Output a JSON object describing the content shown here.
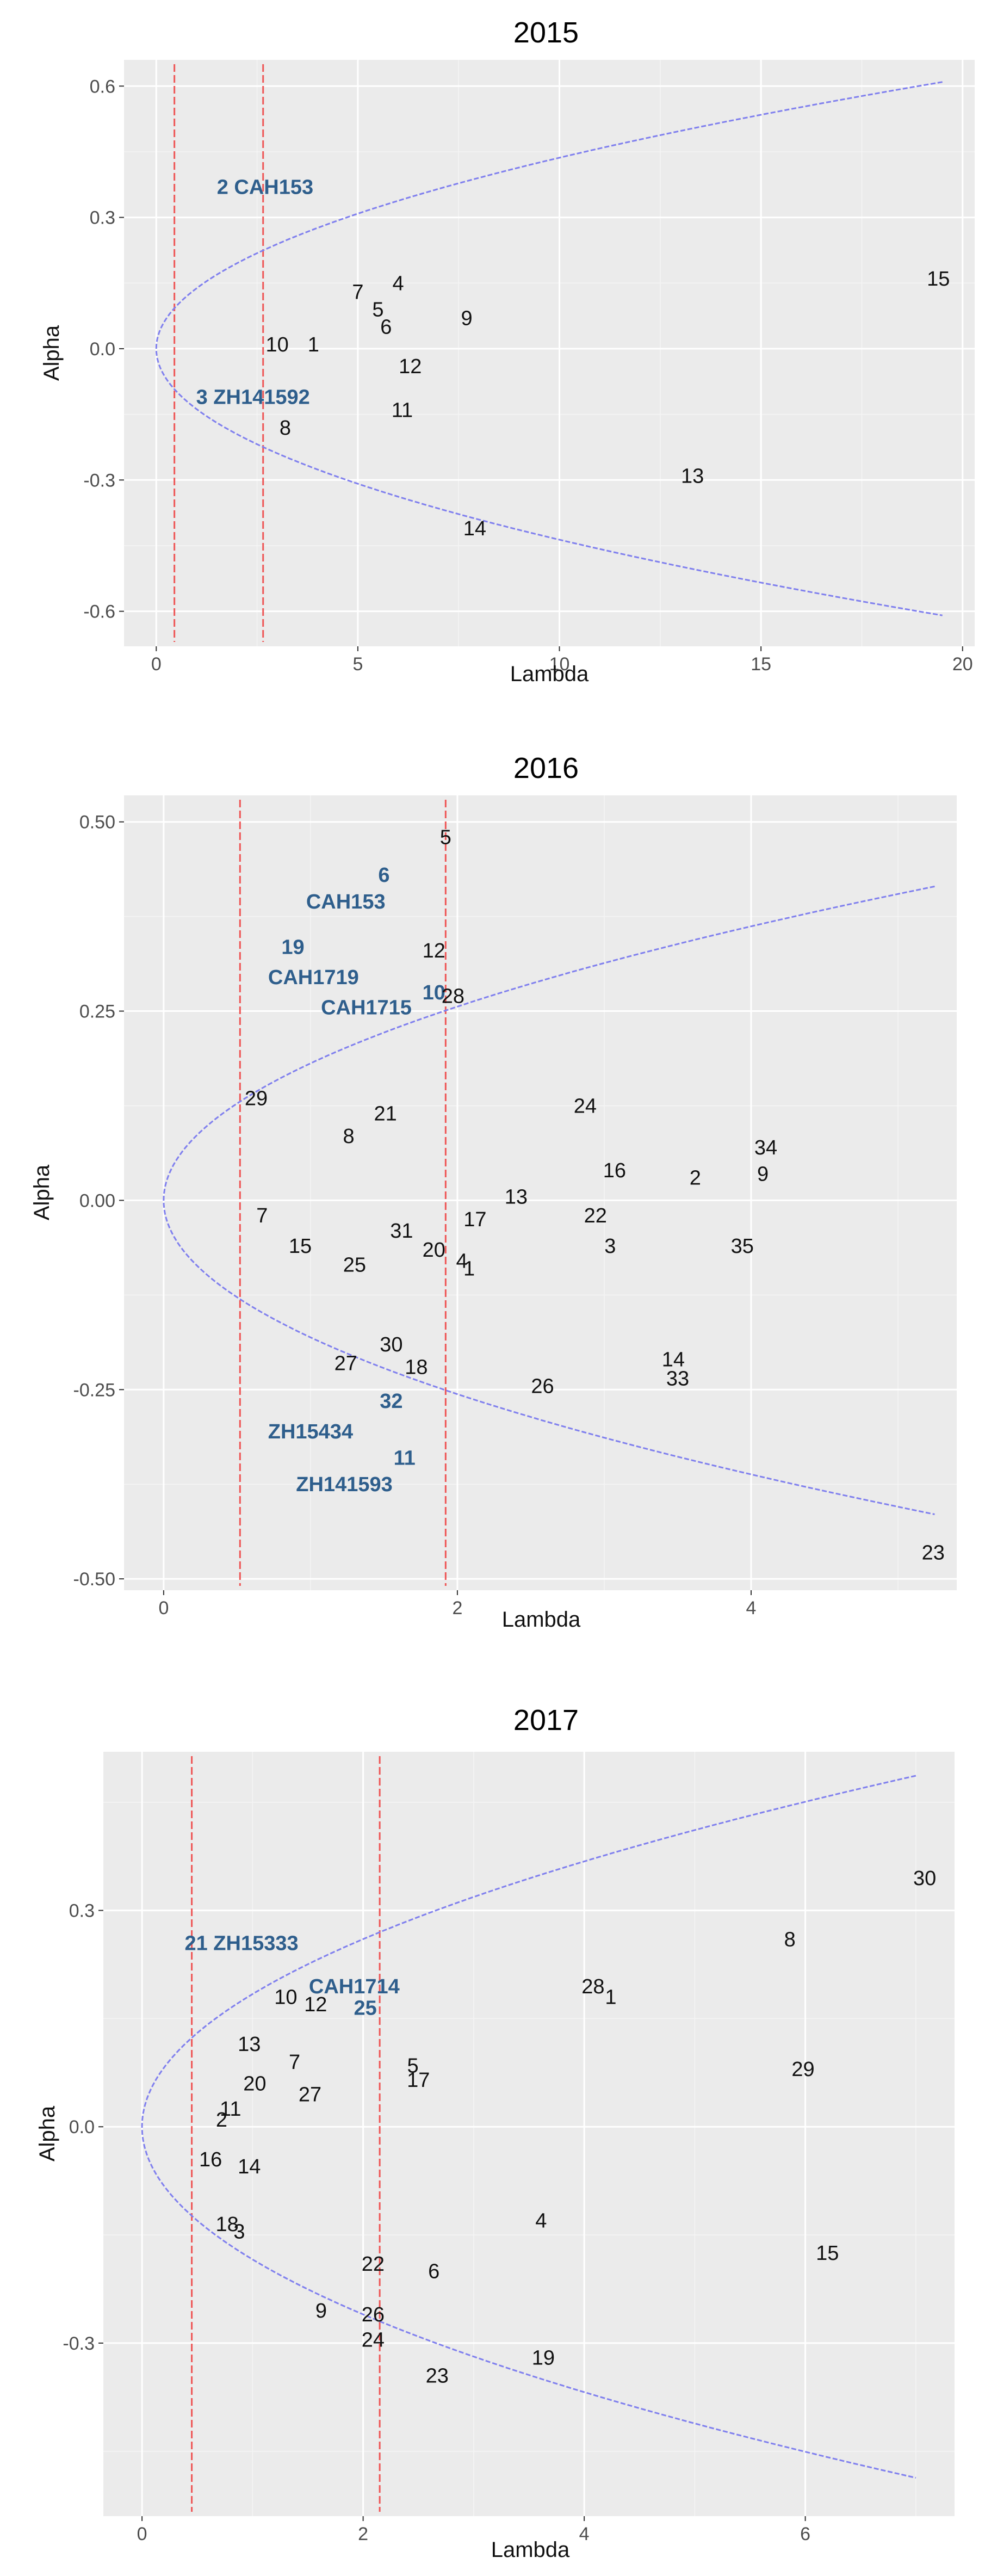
{
  "chart_data": [
    {
      "type": "scatter",
      "title": "2015",
      "xlabel": "Lambda",
      "ylabel": "Alpha",
      "xlim": [
        -0.8,
        20.3
      ],
      "ylim": [
        -0.68,
        0.66
      ],
      "xticks": [
        {
          "v": 0,
          "label": "0"
        },
        {
          "v": 5,
          "label": "5"
        },
        {
          "v": 10,
          "label": "10"
        },
        {
          "v": 15,
          "label": "15"
        },
        {
          "v": 20,
          "label": "20"
        }
      ],
      "yticks": [
        {
          "v": 0.6,
          "label": "0.6"
        },
        {
          "v": 0.3,
          "label": "0.3"
        },
        {
          "v": 0.0,
          "label": "0.0"
        },
        {
          "v": -0.3,
          "label": "-0.3"
        },
        {
          "v": -0.6,
          "label": "-0.6"
        }
      ],
      "vlines": [
        0.45,
        2.65
      ],
      "boundary": {
        "k": 0.138,
        "lambda_max": 19.5
      },
      "points": [
        {
          "label": "2 CAH153",
          "x": 2.7,
          "y": 0.37,
          "highlight": true
        },
        {
          "label": "3 ZH141592",
          "x": 2.4,
          "y": -0.11,
          "highlight": true
        },
        {
          "label": "7",
          "x": 5.0,
          "y": 0.13
        },
        {
          "label": "4",
          "x": 6.0,
          "y": 0.15
        },
        {
          "label": "5",
          "x": 5.5,
          "y": 0.09
        },
        {
          "label": "6",
          "x": 5.7,
          "y": 0.05
        },
        {
          "label": "9",
          "x": 7.7,
          "y": 0.07
        },
        {
          "label": "10",
          "x": 3.0,
          "y": 0.01
        },
        {
          "label": "1",
          "x": 3.9,
          "y": 0.01
        },
        {
          "label": "12",
          "x": 6.3,
          "y": -0.04
        },
        {
          "label": "11",
          "x": 6.1,
          "y": -0.14
        },
        {
          "label": "8",
          "x": 3.2,
          "y": -0.18
        },
        {
          "label": "13",
          "x": 13.3,
          "y": -0.29
        },
        {
          "label": "14",
          "x": 7.9,
          "y": -0.41
        },
        {
          "label": "15",
          "x": 19.4,
          "y": 0.16
        }
      ]
    },
    {
      "type": "scatter",
      "title": "2016",
      "xlabel": "Lambda",
      "ylabel": "Alpha",
      "xlim": [
        -0.27,
        5.4
      ],
      "ylim": [
        -0.515,
        0.535
      ],
      "xticks": [
        {
          "v": 0,
          "label": "0"
        },
        {
          "v": 2,
          "label": "2"
        },
        {
          "v": 4,
          "label": "4"
        }
      ],
      "yticks": [
        {
          "v": 0.5,
          "label": "0.50"
        },
        {
          "v": 0.25,
          "label": "0.25"
        },
        {
          "v": 0.0,
          "label": "0.00"
        },
        {
          "v": -0.25,
          "label": "-0.25"
        },
        {
          "v": -0.5,
          "label": "-0.50"
        }
      ],
      "vlines": [
        0.52,
        1.92
      ],
      "boundary": {
        "k": 0.181,
        "lambda_max": 5.25
      },
      "points": [
        {
          "label": "5",
          "x": 1.92,
          "y": 0.48
        },
        {
          "label": "6",
          "x": 1.5,
          "y": 0.43,
          "highlight": true
        },
        {
          "label": "CAH153",
          "x": 1.24,
          "y": 0.395,
          "highlight": true
        },
        {
          "label": "19",
          "x": 0.88,
          "y": 0.335,
          "highlight": true
        },
        {
          "label": "CAH1719",
          "x": 1.02,
          "y": 0.295,
          "highlight": true
        },
        {
          "label": "CAH1715",
          "x": 1.38,
          "y": 0.255,
          "highlight": true
        },
        {
          "label": "10",
          "x": 1.84,
          "y": 0.275,
          "highlight": true
        },
        {
          "label": "12",
          "x": 1.84,
          "y": 0.33
        },
        {
          "label": "28",
          "x": 1.97,
          "y": 0.27
        },
        {
          "label": "29",
          "x": 0.63,
          "y": 0.135
        },
        {
          "label": "21",
          "x": 1.51,
          "y": 0.115
        },
        {
          "label": "8",
          "x": 1.26,
          "y": 0.085
        },
        {
          "label": "24",
          "x": 2.87,
          "y": 0.125
        },
        {
          "label": "34",
          "x": 4.1,
          "y": 0.07
        },
        {
          "label": "16",
          "x": 3.07,
          "y": 0.04
        },
        {
          "label": "2",
          "x": 3.62,
          "y": 0.03
        },
        {
          "label": "9",
          "x": 4.08,
          "y": 0.035
        },
        {
          "label": "13",
          "x": 2.4,
          "y": 0.005
        },
        {
          "label": "7",
          "x": 0.67,
          "y": -0.02
        },
        {
          "label": "17",
          "x": 2.12,
          "y": -0.025
        },
        {
          "label": "22",
          "x": 2.94,
          "y": -0.02
        },
        {
          "label": "31",
          "x": 1.62,
          "y": -0.04
        },
        {
          "label": "15",
          "x": 0.93,
          "y": -0.06
        },
        {
          "label": "20",
          "x": 1.84,
          "y": -0.065
        },
        {
          "label": "3",
          "x": 3.04,
          "y": -0.06
        },
        {
          "label": "35",
          "x": 3.94,
          "y": -0.06
        },
        {
          "label": "4",
          "x": 2.03,
          "y": -0.08
        },
        {
          "label": "1",
          "x": 2.08,
          "y": -0.09
        },
        {
          "label": "25",
          "x": 1.3,
          "y": -0.085
        },
        {
          "label": "30",
          "x": 1.55,
          "y": -0.19
        },
        {
          "label": "14",
          "x": 3.47,
          "y": -0.21
        },
        {
          "label": "27",
          "x": 1.24,
          "y": -0.215
        },
        {
          "label": "18",
          "x": 1.72,
          "y": -0.22
        },
        {
          "label": "33",
          "x": 3.5,
          "y": -0.235
        },
        {
          "label": "26",
          "x": 2.58,
          "y": -0.245
        },
        {
          "label": "32",
          "x": 1.55,
          "y": -0.265,
          "highlight": true
        },
        {
          "label": "ZH15434",
          "x": 1.0,
          "y": -0.305,
          "highlight": true
        },
        {
          "label": "11",
          "x": 1.64,
          "y": -0.34,
          "highlight": true
        },
        {
          "label": "ZH141593",
          "x": 1.23,
          "y": -0.375,
          "highlight": true
        },
        {
          "label": "23",
          "x": 5.24,
          "y": -0.465
        }
      ]
    },
    {
      "type": "scatter",
      "title": "2017",
      "xlabel": "Lambda",
      "ylabel": "Alpha",
      "xlim": [
        -0.35,
        7.35
      ],
      "ylim": [
        -0.54,
        0.52
      ],
      "xticks": [
        {
          "v": 0,
          "label": "0"
        },
        {
          "v": 2,
          "label": "2"
        },
        {
          "v": 4,
          "label": "4"
        },
        {
          "v": 6,
          "label": "6"
        }
      ],
      "yticks": [
        {
          "v": 0.3,
          "label": "0.3"
        },
        {
          "v": 0.0,
          "label": "0.0"
        },
        {
          "v": -0.3,
          "label": "-0.3"
        }
      ],
      "vlines": [
        0.45,
        2.15
      ],
      "boundary": {
        "k": 0.184,
        "lambda_max": 7.0
      },
      "points": [
        {
          "label": "21 ZH15333",
          "x": 0.9,
          "y": 0.255,
          "highlight": true
        },
        {
          "label": "CAH1714",
          "x": 1.92,
          "y": 0.195,
          "highlight": true
        },
        {
          "label": "25",
          "x": 2.02,
          "y": 0.165,
          "highlight": true
        },
        {
          "label": "30",
          "x": 7.08,
          "y": 0.345
        },
        {
          "label": "8",
          "x": 5.86,
          "y": 0.26
        },
        {
          "label": "28",
          "x": 4.08,
          "y": 0.195
        },
        {
          "label": "1",
          "x": 4.24,
          "y": 0.18
        },
        {
          "label": "10",
          "x": 1.3,
          "y": 0.18
        },
        {
          "label": "12",
          "x": 1.57,
          "y": 0.17
        },
        {
          "label": "13",
          "x": 0.97,
          "y": 0.115
        },
        {
          "label": "7",
          "x": 1.38,
          "y": 0.09
        },
        {
          "label": "5",
          "x": 2.45,
          "y": 0.085
        },
        {
          "label": "17",
          "x": 2.5,
          "y": 0.065
        },
        {
          "label": "29",
          "x": 5.98,
          "y": 0.08
        },
        {
          "label": "20",
          "x": 1.02,
          "y": 0.06
        },
        {
          "label": "27",
          "x": 1.52,
          "y": 0.045
        },
        {
          "label": "11",
          "x": 0.8,
          "y": 0.025
        },
        {
          "label": "2",
          "x": 0.72,
          "y": 0.01
        },
        {
          "label": "16",
          "x": 0.62,
          "y": -0.045
        },
        {
          "label": "14",
          "x": 0.97,
          "y": -0.055
        },
        {
          "label": "4",
          "x": 3.61,
          "y": -0.13
        },
        {
          "label": "18",
          "x": 0.77,
          "y": -0.135
        },
        {
          "label": "3",
          "x": 0.88,
          "y": -0.145
        },
        {
          "label": "15",
          "x": 6.2,
          "y": -0.175
        },
        {
          "label": "22",
          "x": 2.09,
          "y": -0.19
        },
        {
          "label": "6",
          "x": 2.64,
          "y": -0.2
        },
        {
          "label": "9",
          "x": 1.62,
          "y": -0.255
        },
        {
          "label": "26",
          "x": 2.09,
          "y": -0.26
        },
        {
          "label": "24",
          "x": 2.09,
          "y": -0.295
        },
        {
          "label": "19",
          "x": 3.63,
          "y": -0.32
        },
        {
          "label": "23",
          "x": 2.67,
          "y": -0.345
        }
      ]
    }
  ]
}
